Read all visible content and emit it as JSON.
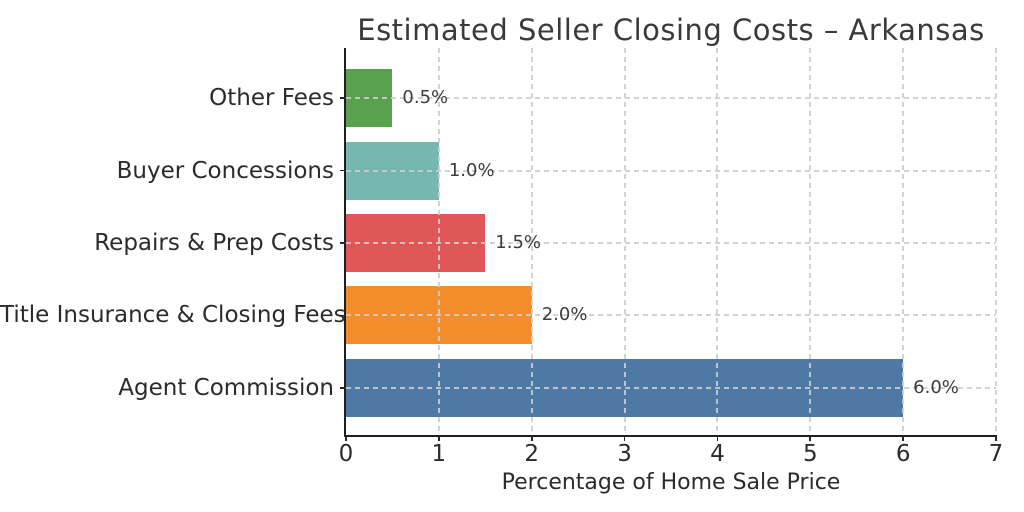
{
  "background_color": "#ffffff",
  "chart_data": {
    "type": "bar",
    "orientation": "horizontal",
    "title": "Estimated Seller Closing Costs – Arkansas",
    "xlabel": "Percentage of Home Sale Price",
    "ylabel": "",
    "categories": [
      "Other Fees",
      "Buyer Concessions",
      "Repairs & Prep Costs",
      "Title Insurance & Closing Fees",
      "Agent Commission"
    ],
    "values": [
      0.5,
      1.0,
      1.5,
      2.0,
      6.0
    ],
    "value_labels": [
      "0.5%",
      "1.0%",
      "1.5%",
      "2.0%",
      "6.0%"
    ],
    "colors": [
      "#59a14f",
      "#76b7b2",
      "#e15759",
      "#f28e2b",
      "#4e79a7"
    ],
    "xlim": [
      0,
      7
    ],
    "xticks": [
      0,
      1,
      2,
      3,
      4,
      5,
      6,
      7
    ],
    "xtick_labels": [
      "0",
      "1",
      "2",
      "3",
      "4",
      "5",
      "6",
      "7"
    ],
    "grid": "dashed, both axes, drawn over bars",
    "grid_color": "#cdcdcd",
    "axis_color": "#1f1f1f",
    "text_color": "#2b2b2b",
    "legend": "none"
  }
}
